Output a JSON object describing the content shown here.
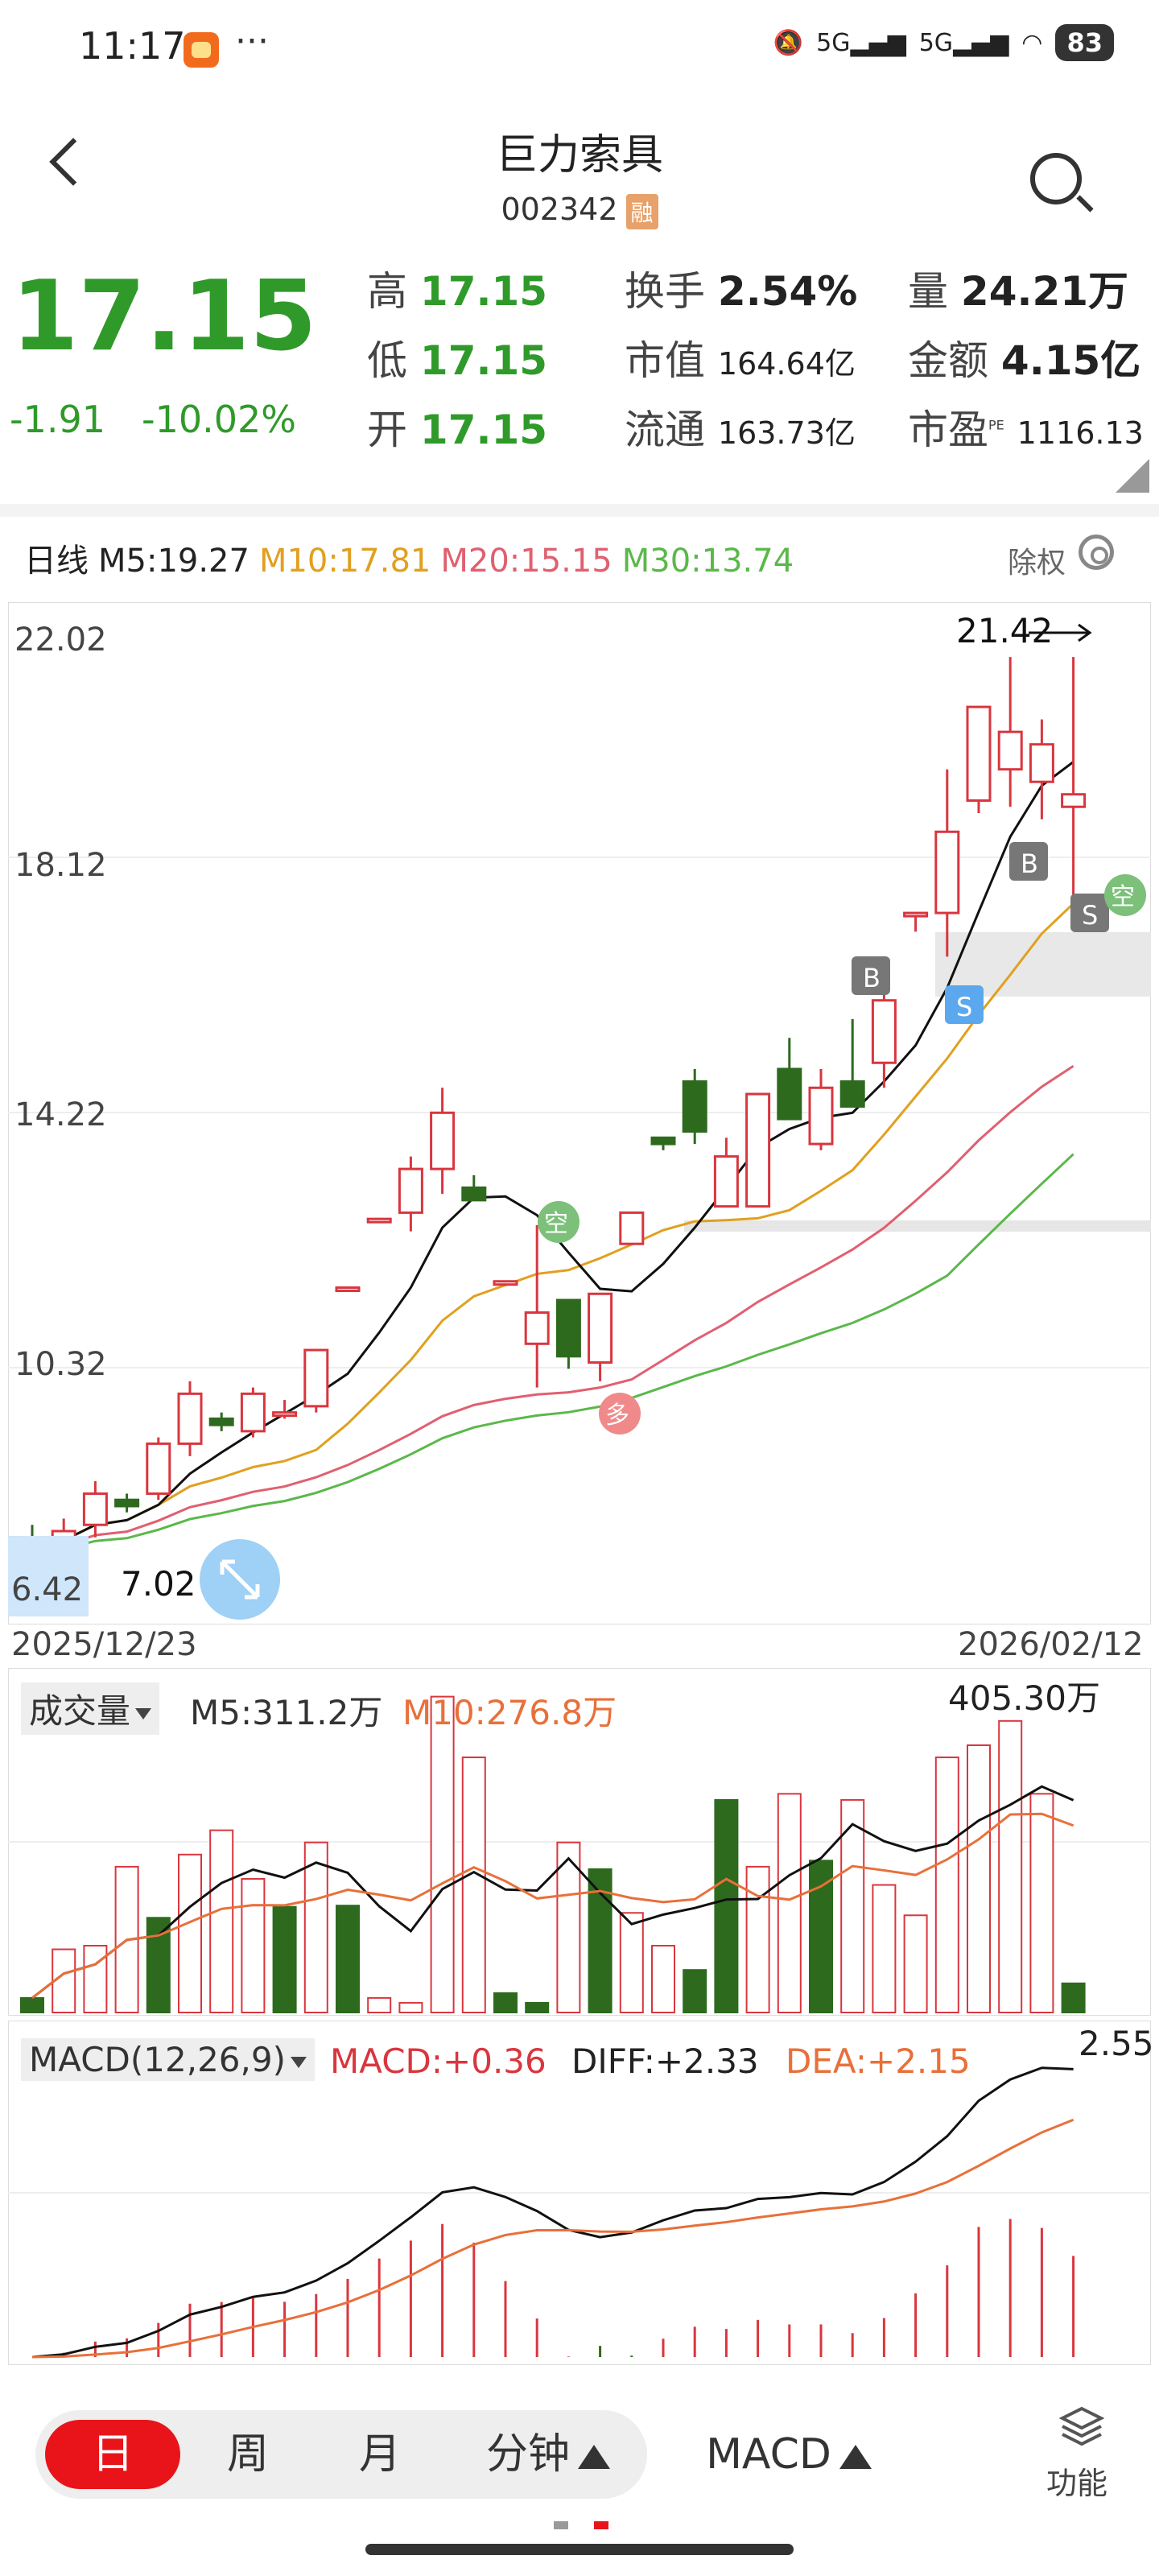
{
  "status": {
    "time": "11:17",
    "dots": "···",
    "net1": "5G",
    "net2": "5G",
    "battery": "83"
  },
  "header": {
    "title": "巨力索具",
    "code": "002342",
    "badge": "融"
  },
  "quote": {
    "price": "17.15",
    "change": "-1.91",
    "change_pct": "-10.02%",
    "high_label": "高",
    "high": "17.15",
    "low_label": "低",
    "low": "17.15",
    "open_label": "开",
    "open": "17.15",
    "turnover_label": "换手",
    "turnover": "2.54%",
    "mktcap_label": "市值",
    "mktcap": "164.64亿",
    "float_label": "流通",
    "float": "163.73亿",
    "vol_label": "量",
    "vol": "24.21万",
    "amount_label": "金额",
    "amount": "4.15亿",
    "pe_label": "市盈",
    "pe_sup": "PE",
    "pe": "1116.13"
  },
  "chart_legend": {
    "period": "日线",
    "m5": "M5:19.27",
    "m10": "M10:17.81",
    "m20": "M20:15.15",
    "m30": "M30:13.74",
    "adjust": "除权"
  },
  "colors": {
    "up": "#d9363e",
    "down": "#2d6a1e",
    "m5": "#111111",
    "m10": "#e0a020",
    "m20": "#e06070",
    "m30": "#5ab84a"
  },
  "kline": {
    "y_ticks": [
      "22.02",
      "18.12",
      "14.22",
      "10.32"
    ],
    "max_label": "21.42",
    "min_label_left": "6.42",
    "min_label": "7.02",
    "date_start": "2025/12/23",
    "date_end": "2026/02/12",
    "markers": {
      "b1": "B",
      "b2": "B",
      "s1": "S",
      "s2": "S",
      "kong1": "空",
      "kong2": "空",
      "duo": "多"
    }
  },
  "chart_data": {
    "type": "candlestick",
    "x_start": "2025/12/23",
    "x_end": "2026/02/12",
    "ylim": [
      6.42,
      22.02
    ],
    "candles": [
      [
        7.2,
        7.5,
        7.0,
        7.1
      ],
      [
        7.3,
        7.6,
        7.1,
        7.4
      ],
      [
        7.5,
        8.2,
        7.3,
        8.0
      ],
      [
        7.9,
        8.0,
        7.7,
        7.8
      ],
      [
        8.0,
        8.9,
        7.9,
        8.8
      ],
      [
        8.8,
        9.8,
        8.6,
        9.6
      ],
      [
        9.2,
        9.3,
        9.0,
        9.1
      ],
      [
        9.0,
        9.7,
        8.9,
        9.6
      ],
      [
        9.3,
        9.5,
        9.2,
        9.3
      ],
      [
        9.4,
        10.3,
        9.3,
        10.3
      ],
      [
        11.3,
        11.3,
        11.3,
        11.3
      ],
      [
        12.4,
        12.4,
        12.4,
        12.4
      ],
      [
        12.5,
        13.4,
        12.2,
        13.2
      ],
      [
        13.2,
        14.5,
        12.8,
        14.1
      ],
      [
        12.9,
        13.1,
        12.7,
        12.7
      ],
      [
        11.4,
        11.4,
        11.4,
        11.4
      ],
      [
        10.4,
        12.3,
        9.7,
        10.9
      ],
      [
        11.1,
        11.1,
        10.0,
        10.2
      ],
      [
        10.1,
        11.2,
        9.8,
        11.2
      ],
      [
        12.0,
        12.5,
        12.0,
        12.5
      ],
      [
        13.7,
        13.7,
        13.5,
        13.6
      ],
      [
        14.6,
        14.8,
        13.6,
        13.8
      ],
      [
        12.6,
        13.7,
        12.6,
        13.4
      ],
      [
        12.6,
        14.4,
        12.6,
        14.4
      ],
      [
        14.8,
        15.3,
        14.0,
        14.0
      ],
      [
        13.6,
        14.8,
        13.5,
        14.5
      ],
      [
        14.6,
        15.6,
        14.2,
        14.2
      ],
      [
        14.9,
        16.3,
        14.5,
        15.9
      ],
      [
        17.3,
        17.3,
        17.0,
        17.3
      ],
      [
        17.3,
        19.6,
        16.6,
        18.6
      ],
      [
        19.1,
        20.6,
        18.9,
        20.6
      ],
      [
        19.6,
        21.4,
        19.0,
        20.2
      ],
      [
        19.4,
        20.4,
        18.8,
        20.0
      ],
      [
        19.0,
        21.4,
        17.2,
        19.2
      ]
    ],
    "ma": {
      "M5": "19.27",
      "M10": "17.81",
      "M20": "15.15",
      "M30": "13.74"
    }
  },
  "volume": {
    "label": "成交量",
    "m5": "M5:311.2万",
    "m10": "M10:276.8万",
    "max": "405.30万",
    "values": [
      12,
      52,
      55,
      120,
      78,
      130,
      150,
      110,
      87,
      140,
      88,
      12,
      8,
      260,
      210,
      16,
      8,
      140,
      118,
      82,
      55,
      35,
      175,
      120,
      180,
      125,
      175,
      105,
      80,
      210,
      220,
      240,
      180,
      24
    ],
    "up": [
      0,
      1,
      1,
      1,
      0,
      1,
      1,
      1,
      0,
      1,
      0,
      1,
      1,
      1,
      1,
      0,
      0,
      1,
      0,
      1,
      1,
      0,
      0,
      1,
      1,
      0,
      1,
      1,
      1,
      1,
      1,
      1,
      1,
      0
    ]
  },
  "macd": {
    "label": "MACD(12,26,9)",
    "macd": "MACD:+0.36",
    "diff": "DIFF:+2.33",
    "dea": "DEA:+2.15",
    "top": "2.55"
  },
  "bottom": {
    "tab_day": "日",
    "tab_week": "周",
    "tab_month": "月",
    "tab_min": "分钟",
    "indicator": "MACD",
    "func": "功能"
  }
}
